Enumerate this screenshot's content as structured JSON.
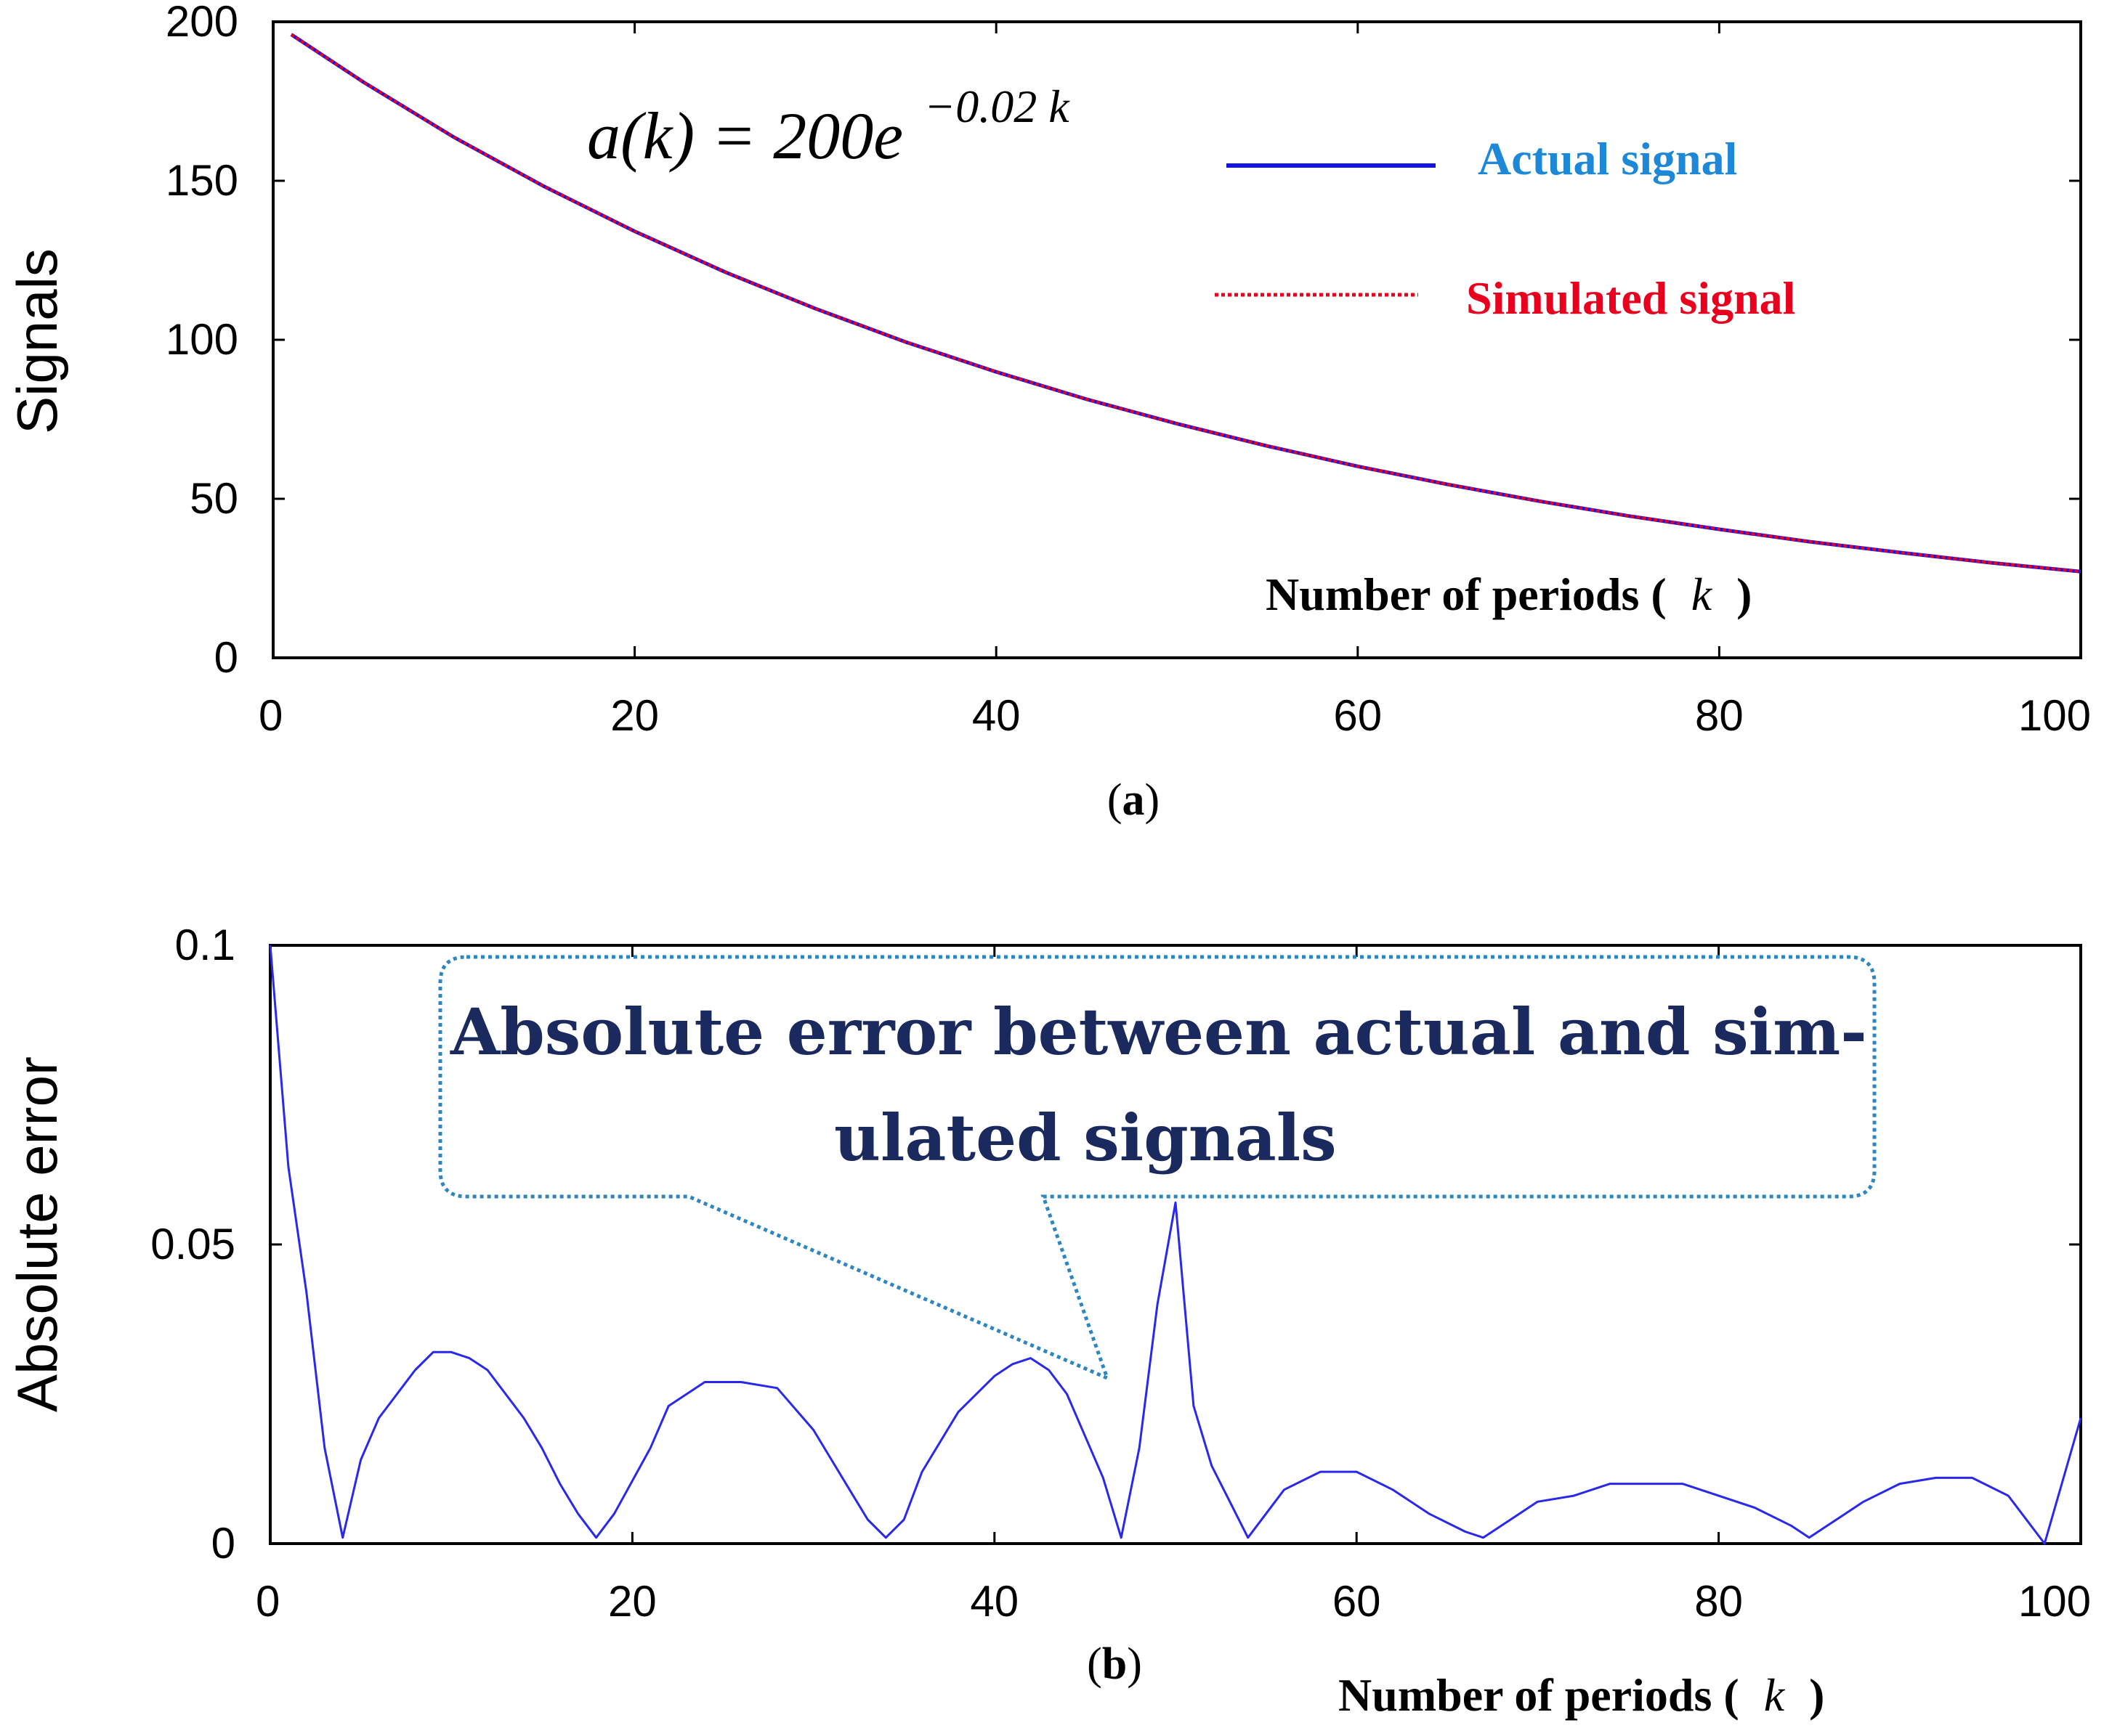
{
  "colors": {
    "actual": "#1414e6",
    "simulated": "#e8001e",
    "error": "#2828f0",
    "callout": "#2e86c1",
    "legend_actual_text": "#1e88d8",
    "legend_sim_text": "#e8001e",
    "annotation_text": "#1a2a5e"
  },
  "chart_data": [
    {
      "type": "line",
      "panel": "a",
      "caption_open": "(",
      "caption_letter": "a",
      "caption_close": ")",
      "title": "",
      "ylabel": "Signals",
      "xlabel_text": "Number of periods (",
      "xlabel_var": "k",
      "xlabel_close": ")",
      "xlim": [
        0,
        100
      ],
      "ylim": [
        0,
        200
      ],
      "xticks": [
        0,
        20,
        40,
        60,
        80,
        100
      ],
      "yticks": [
        0,
        50,
        100,
        150,
        200
      ],
      "formula": {
        "lhs": "a(k) = 200e",
        "exponent": "−0.02 k"
      },
      "legend": {
        "placement": "top-right",
        "entries": [
          "Actual signal",
          "Simulated signal"
        ]
      },
      "x": [
        1,
        5,
        10,
        15,
        20,
        25,
        30,
        35,
        40,
        45,
        50,
        55,
        60,
        65,
        70,
        75,
        80,
        85,
        90,
        95,
        100
      ],
      "series": [
        {
          "name": "Actual signal",
          "style": "solid",
          "values": [
            196.0,
            181.0,
            163.7,
            148.2,
            134.1,
            121.3,
            109.8,
            99.3,
            89.9,
            81.3,
            73.6,
            66.6,
            60.2,
            54.5,
            49.3,
            44.6,
            40.4,
            36.5,
            33.1,
            29.9,
            27.1
          ]
        },
        {
          "name": "Simulated signal",
          "style": "dotted",
          "values": [
            196.0,
            181.0,
            163.7,
            148.2,
            134.1,
            121.3,
            109.8,
            99.3,
            89.9,
            81.3,
            73.6,
            66.6,
            60.2,
            54.5,
            49.3,
            44.6,
            40.4,
            36.5,
            33.1,
            29.9,
            27.1
          ]
        }
      ]
    },
    {
      "type": "line",
      "panel": "b",
      "caption_open": "(",
      "caption_letter": "b",
      "caption_close": ")",
      "title": "",
      "ylabel": "Absolute error",
      "xlabel_text": "Number of periods (",
      "xlabel_var": "k",
      "xlabel_close": ")",
      "xlim": [
        0,
        100
      ],
      "ylim": [
        0,
        0.1
      ],
      "xticks": [
        0,
        20,
        40,
        60,
        80,
        100
      ],
      "yticks": [
        0,
        0.05,
        0.1
      ],
      "ytick_labels": [
        "0",
        "0.05",
        "0.1"
      ],
      "annotation_lines": [
        "Absolute error between actual and sim-",
        "ulated signals"
      ],
      "series": [
        {
          "name": "Absolute error",
          "x": [
            1,
            2,
            3,
            4,
            5,
            6,
            8,
            9,
            10,
            11,
            12,
            14,
            15,
            16,
            17,
            18,
            19,
            21,
            22,
            24,
            26,
            28,
            30,
            32,
            33,
            34,
            35,
            36,
            38,
            40,
            41,
            42,
            43,
            44,
            45,
            46,
            47,
            48,
            49,
            50,
            51,
            52,
            53,
            54,
            55,
            56,
            58,
            60,
            62,
            64,
            66,
            67,
            68,
            70,
            72,
            74,
            76,
            78,
            80,
            82,
            84,
            85,
            86,
            88,
            90,
            92,
            94,
            96,
            98,
            100
          ],
          "y": [
            0.063,
            0.042,
            0.016,
            0.001,
            0.014,
            0.021,
            0.029,
            0.032,
            0.032,
            0.031,
            0.029,
            0.021,
            0.016,
            0.01,
            0.005,
            0.001,
            0.005,
            0.016,
            0.023,
            0.027,
            0.027,
            0.026,
            0.019,
            0.009,
            0.004,
            0.001,
            0.004,
            0.012,
            0.022,
            0.028,
            0.03,
            0.031,
            0.029,
            0.025,
            0.018,
            0.011,
            0.001,
            0.016,
            0.04,
            0.057,
            0.023,
            0.013,
            0.007,
            0.001,
            0.005,
            0.009,
            0.012,
            0.012,
            0.009,
            0.005,
            0.002,
            0.001,
            0.003,
            0.007,
            0.008,
            0.01,
            0.01,
            0.01,
            0.008,
            0.006,
            0.003,
            0.001,
            0.003,
            0.007,
            0.01,
            0.011,
            0.011,
            0.008,
            0.0,
            0.021
          ]
        }
      ]
    }
  ]
}
